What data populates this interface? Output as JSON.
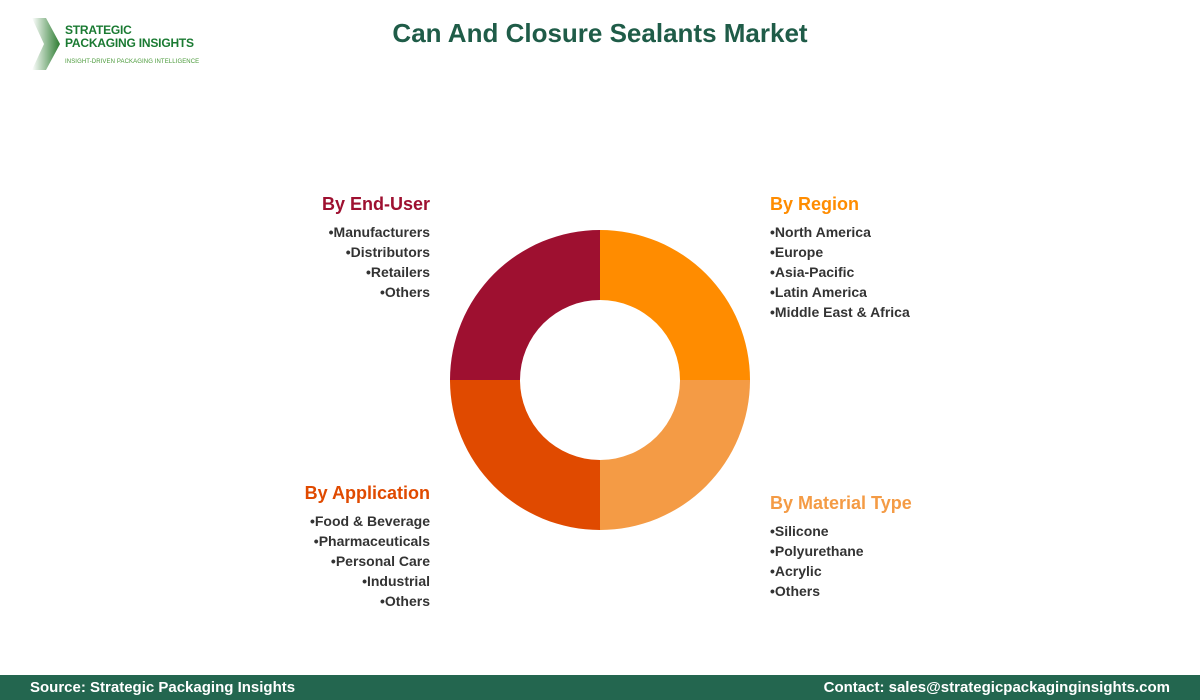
{
  "logo": {
    "line1": "STRATEGIC",
    "line2": "PACKAGING INSIGHTS",
    "tagline": "INSIGHT-DRIVEN PACKAGING INTELLIGENCE"
  },
  "title": "Can And Closure Sealants Market",
  "chart_data": {
    "type": "pie",
    "donut": true,
    "categories": [
      "By Region",
      "By Material Type",
      "By Application",
      "By End-User"
    ],
    "values": [
      25,
      25,
      25,
      25
    ],
    "colors": [
      "#ff8c00",
      "#f49b45",
      "#e04a00",
      "#9e1030"
    ]
  },
  "groups": {
    "end_user": {
      "title": "By End-User",
      "color": "#9e1030",
      "items": [
        "Manufacturers",
        "Distributors",
        "Retailers",
        "Others"
      ]
    },
    "region": {
      "title": "By Region",
      "color": "#ff8c00",
      "items": [
        "North America",
        "Europe",
        "Asia-Pacific",
        "Latin America",
        "Middle East & Africa"
      ]
    },
    "application": {
      "title": "By Application",
      "color": "#e04a00",
      "items": [
        "Food & Beverage",
        "Pharmaceuticals",
        "Personal Care",
        "Industrial",
        "Others"
      ]
    },
    "material": {
      "title": "By Material Type",
      "color": "#f49b45",
      "items": [
        "Silicone",
        "Polyurethane",
        "Acrylic",
        "Others"
      ]
    }
  },
  "footer": {
    "source": "Source: Strategic Packaging Insights",
    "contact": "Contact: sales@strategicpackaginginsights.com"
  }
}
